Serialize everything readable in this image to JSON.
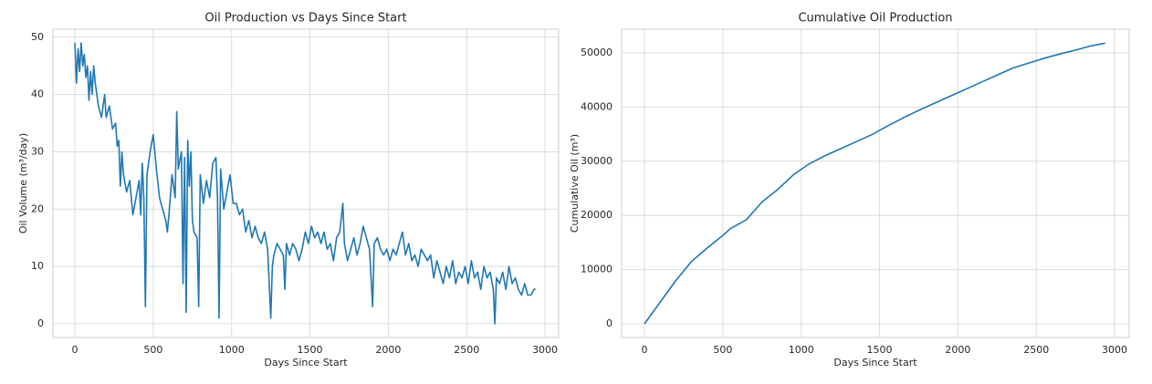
{
  "chart_data": [
    {
      "type": "line",
      "title": "Oil Production vs Days Since Start",
      "xlabel": "Days Since Start",
      "ylabel": "Oil Volume (m³/day)",
      "x": [
        0,
        10,
        20,
        30,
        40,
        50,
        60,
        70,
        80,
        90,
        100,
        110,
        120,
        130,
        150,
        170,
        190,
        200,
        220,
        240,
        260,
        270,
        280,
        290,
        300,
        310,
        330,
        350,
        370,
        390,
        410,
        420,
        430,
        440,
        450,
        460,
        480,
        500,
        520,
        540,
        560,
        580,
        590,
        600,
        620,
        640,
        650,
        660,
        680,
        690,
        700,
        710,
        720,
        730,
        740,
        750,
        760,
        780,
        790,
        800,
        820,
        840,
        860,
        880,
        900,
        910,
        920,
        930,
        950,
        970,
        990,
        1010,
        1030,
        1050,
        1070,
        1090,
        1110,
        1130,
        1150,
        1170,
        1190,
        1210,
        1230,
        1250,
        1260,
        1270,
        1290,
        1310,
        1330,
        1340,
        1350,
        1370,
        1390,
        1410,
        1430,
        1450,
        1470,
        1490,
        1510,
        1530,
        1550,
        1570,
        1590,
        1610,
        1630,
        1650,
        1670,
        1690,
        1710,
        1720,
        1740,
        1760,
        1780,
        1800,
        1820,
        1840,
        1860,
        1880,
        1900,
        1910,
        1930,
        1950,
        1970,
        1990,
        2010,
        2030,
        2050,
        2070,
        2090,
        2110,
        2130,
        2150,
        2170,
        2190,
        2210,
        2230,
        2250,
        2270,
        2290,
        2310,
        2330,
        2350,
        2370,
        2390,
        2410,
        2430,
        2450,
        2470,
        2490,
        2510,
        2530,
        2550,
        2570,
        2590,
        2610,
        2630,
        2650,
        2670,
        2680,
        2690,
        2710,
        2730,
        2750,
        2770,
        2790,
        2810,
        2830,
        2850,
        2870,
        2890,
        2910,
        2930,
        2940
      ],
      "values": [
        49,
        42,
        48,
        44,
        49,
        45,
        47,
        43,
        45,
        39,
        44,
        40,
        45,
        42,
        38,
        36,
        40,
        36,
        38,
        34,
        35,
        31,
        32,
        24,
        30,
        26,
        23,
        25,
        19,
        22,
        25,
        19,
        28,
        22,
        3,
        26,
        30,
        33,
        27,
        22,
        20,
        18,
        16,
        19,
        26,
        22,
        37,
        27,
        30,
        7,
        29,
        2,
        32,
        24,
        30,
        18,
        16,
        15,
        3,
        26,
        21,
        25,
        22,
        28,
        29,
        22,
        1,
        27,
        20,
        23,
        26,
        21,
        21,
        19,
        20,
        16,
        18,
        15,
        17,
        15,
        14,
        16,
        13,
        1,
        10,
        12,
        14,
        13,
        12,
        6,
        14,
        12,
        14,
        13,
        11,
        13,
        16,
        14,
        17,
        15,
        16,
        14,
        16,
        13,
        14,
        11,
        15,
        16,
        21,
        14,
        11,
        13,
        15,
        12,
        14,
        17,
        15,
        13,
        3,
        14,
        15,
        13,
        12,
        13,
        11,
        13,
        12,
        14,
        16,
        12,
        14,
        11,
        12,
        10,
        13,
        12,
        11,
        12,
        8,
        11,
        9,
        7,
        10,
        8,
        11,
        7,
        9,
        8,
        10,
        7,
        11,
        8,
        9,
        6,
        10,
        8,
        9,
        6,
        0,
        8,
        7,
        9,
        6,
        10,
        7,
        8,
        6,
        5,
        7,
        5,
        5,
        6,
        6
      ],
      "color": "#1f77b4",
      "xlim": [
        -140,
        3087
      ],
      "ylim": [
        -2.4,
        51.4
      ],
      "xticks": [
        0,
        500,
        1000,
        1500,
        2000,
        2500,
        3000
      ],
      "yticks": [
        0,
        10,
        20,
        30,
        40,
        50
      ],
      "grid": true
    },
    {
      "type": "line",
      "title": "Cumulative Oil Production",
      "xlabel": "Days Since Start",
      "ylabel": "Cumulative Oil (m³)",
      "x": [
        0,
        100,
        200,
        300,
        400,
        500,
        550,
        650,
        750,
        850,
        950,
        1050,
        1150,
        1250,
        1350,
        1450,
        1550,
        1650,
        1750,
        1850,
        1950,
        2050,
        2150,
        2250,
        2350,
        2450,
        2550,
        2650,
        2750,
        2850,
        2940
      ],
      "values": [
        0,
        4000,
        8000,
        11500,
        14000,
        16300,
        17600,
        19200,
        22500,
        24800,
        27500,
        29500,
        31000,
        32300,
        33600,
        34900,
        36500,
        38000,
        39400,
        40700,
        42000,
        43300,
        44600,
        45900,
        47200,
        48100,
        49000,
        49800,
        50500,
        51300,
        51800
      ],
      "color": "#1f77b4",
      "xlim": [
        -146,
        3093
      ],
      "ylim": [
        -2525,
        54377
      ],
      "xticks": [
        0,
        500,
        1000,
        1500,
        2000,
        2500,
        3000
      ],
      "yticks": [
        0,
        10000,
        20000,
        30000,
        40000,
        50000
      ],
      "grid": true
    }
  ]
}
